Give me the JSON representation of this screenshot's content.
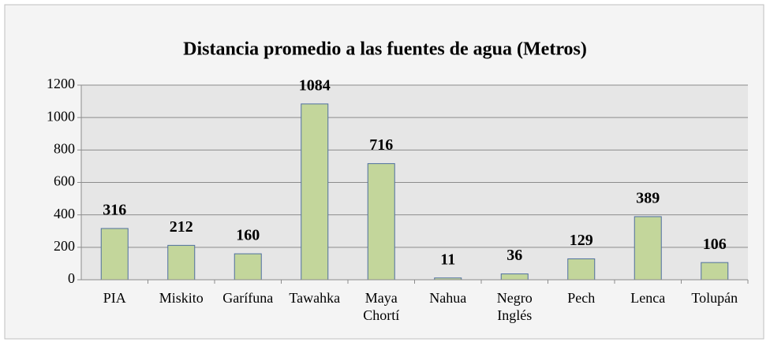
{
  "chart_data": {
    "type": "bar",
    "title": "Distancia promedio a las fuentes de agua (Metros)",
    "categories": [
      "PIA",
      "Miskito",
      "Garífuna",
      "Tawahka",
      "Maya Chortí",
      "Nahua",
      "Negro Inglés",
      "Pech",
      "Lenca",
      "Tolupán"
    ],
    "values": [
      316,
      212,
      160,
      1084,
      716,
      11,
      36,
      129,
      389,
      106
    ],
    "color": "#c3d69b",
    "ylim": [
      0,
      1200
    ],
    "yticks": [
      0,
      200,
      400,
      600,
      800,
      1000,
      1200
    ],
    "grid": true
  }
}
